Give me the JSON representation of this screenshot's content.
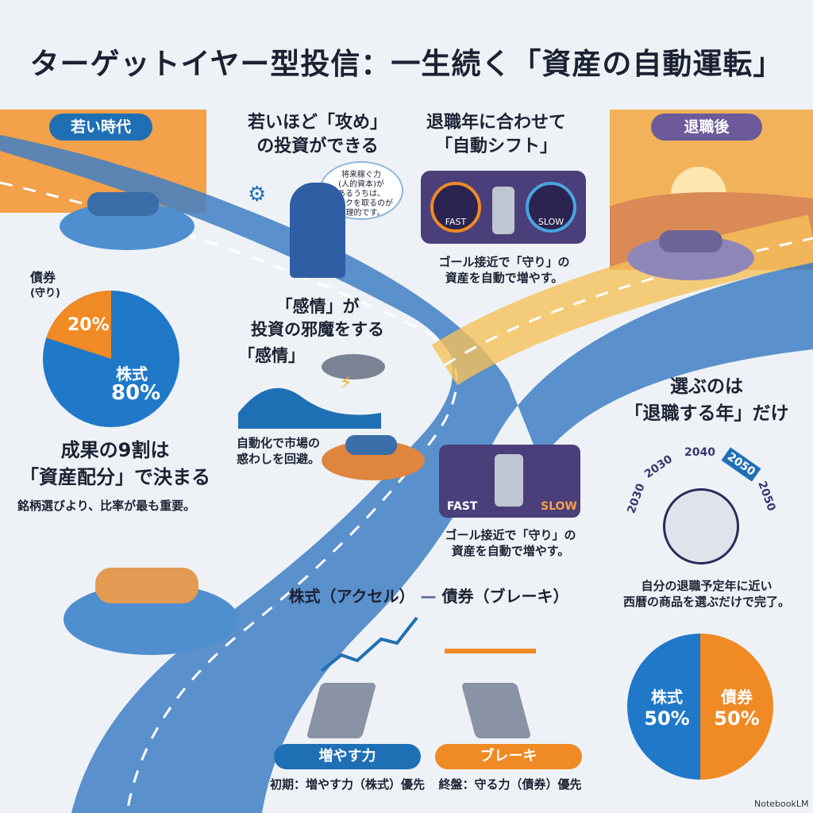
{
  "title": "ターゲットイヤー型投信：一生続く「資産の自動運転」",
  "youth": {
    "label": "若い時代"
  },
  "retire": {
    "label": "退職後"
  },
  "attack": {
    "heading1": "若いほど「攻め」",
    "heading2": "の投資ができる",
    "bubble": [
      "将来稼ぐ力",
      "(人的資本)が",
      "あるうちは、",
      "リスクを取るのが",
      "合理的です。"
    ]
  },
  "shift": {
    "heading1": "退職年に合わせて",
    "heading2": "「自動シフト」",
    "fast": "FAST",
    "slow": "SLOW",
    "caption1": "ゴール接近で「守り」の",
    "caption2": "資産を自動で増やす。"
  },
  "pie_left": {
    "bond_label1": "債券",
    "bond_label2": "(守り)",
    "bond_pct": "20%",
    "stock_label": "株式",
    "stock_pct": "80%",
    "colors": {
      "stock": "#1f78c8",
      "bond": "#f08a24"
    }
  },
  "allocation": {
    "heading1": "成果の9割は",
    "heading2": "「資産配分」で決まる",
    "sub": "銘柄選びより、比率が最も重要。"
  },
  "emotion": {
    "heading1": "「感情」が",
    "heading2": "投資の邪魔をする",
    "heading3": "「感情」",
    "caption1": "自動化で市場の",
    "caption2": "惑わしを回避。"
  },
  "shift2": {
    "fast": "FAST",
    "slow": "SLOW",
    "caption1": "ゴール接近で「守り」の",
    "caption2": "資産を自動で増やす。"
  },
  "choose": {
    "heading1": "選ぶのは",
    "heading2": "「退職する年」だけ",
    "dial": [
      "2030",
      "2030",
      "2040",
      "2050",
      "2050"
    ],
    "selected": "2050",
    "caption1": "自分の退職予定年に近い",
    "caption2": "西暦の商品を選ぶだけで完了。"
  },
  "pedals": {
    "heading_left": "株式（アクセル）",
    "heading_right": "債券（ブレーキ）",
    "accel_label": "増やす力",
    "accel_caption": "初期：増やす力（株式）優先",
    "brake_label": "ブレーキ",
    "brake_caption": "終盤：守る力（債券）優先"
  },
  "pie_right": {
    "stock_label": "株式",
    "stock_pct": "50%",
    "bond_label": "債券",
    "bond_pct": "50%"
  },
  "watermark": "NotebookLM"
}
